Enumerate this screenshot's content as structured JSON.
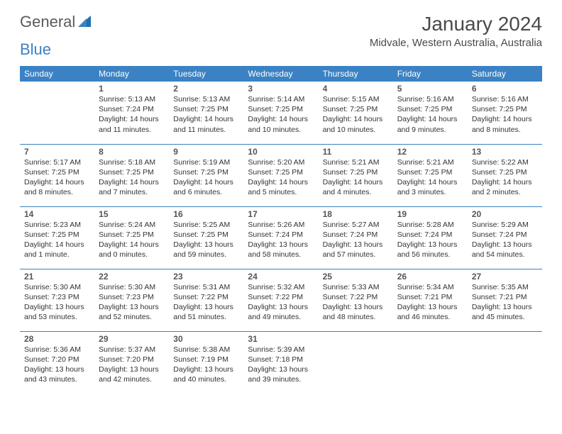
{
  "logo": {
    "word1": "General",
    "word2": "Blue"
  },
  "title": "January 2024",
  "location": "Midvale, Western Australia, Australia",
  "dayHeaders": [
    "Sunday",
    "Monday",
    "Tuesday",
    "Wednesday",
    "Thursday",
    "Friday",
    "Saturday"
  ],
  "colors": {
    "headerBg": "#3b82c4",
    "headerText": "#ffffff",
    "cellBorder": "#3b82c4",
    "bodyText": "#333333",
    "logoGray": "#5a5a5a",
    "logoBlue": "#3b82c4"
  },
  "typography": {
    "monthTitle_fontsize": 28,
    "location_fontsize": 15,
    "dayHeader_fontsize": 12,
    "dayNum_fontsize": 12,
    "cellText_fontsize": 10.5
  },
  "weeks": [
    [
      null,
      {
        "n": "1",
        "sr": "5:13 AM",
        "ss": "7:24 PM",
        "dl": "14 hours and 11 minutes."
      },
      {
        "n": "2",
        "sr": "5:13 AM",
        "ss": "7:25 PM",
        "dl": "14 hours and 11 minutes."
      },
      {
        "n": "3",
        "sr": "5:14 AM",
        "ss": "7:25 PM",
        "dl": "14 hours and 10 minutes."
      },
      {
        "n": "4",
        "sr": "5:15 AM",
        "ss": "7:25 PM",
        "dl": "14 hours and 10 minutes."
      },
      {
        "n": "5",
        "sr": "5:16 AM",
        "ss": "7:25 PM",
        "dl": "14 hours and 9 minutes."
      },
      {
        "n": "6",
        "sr": "5:16 AM",
        "ss": "7:25 PM",
        "dl": "14 hours and 8 minutes."
      }
    ],
    [
      {
        "n": "7",
        "sr": "5:17 AM",
        "ss": "7:25 PM",
        "dl": "14 hours and 8 minutes."
      },
      {
        "n": "8",
        "sr": "5:18 AM",
        "ss": "7:25 PM",
        "dl": "14 hours and 7 minutes."
      },
      {
        "n": "9",
        "sr": "5:19 AM",
        "ss": "7:25 PM",
        "dl": "14 hours and 6 minutes."
      },
      {
        "n": "10",
        "sr": "5:20 AM",
        "ss": "7:25 PM",
        "dl": "14 hours and 5 minutes."
      },
      {
        "n": "11",
        "sr": "5:21 AM",
        "ss": "7:25 PM",
        "dl": "14 hours and 4 minutes."
      },
      {
        "n": "12",
        "sr": "5:21 AM",
        "ss": "7:25 PM",
        "dl": "14 hours and 3 minutes."
      },
      {
        "n": "13",
        "sr": "5:22 AM",
        "ss": "7:25 PM",
        "dl": "14 hours and 2 minutes."
      }
    ],
    [
      {
        "n": "14",
        "sr": "5:23 AM",
        "ss": "7:25 PM",
        "dl": "14 hours and 1 minute."
      },
      {
        "n": "15",
        "sr": "5:24 AM",
        "ss": "7:25 PM",
        "dl": "14 hours and 0 minutes."
      },
      {
        "n": "16",
        "sr": "5:25 AM",
        "ss": "7:25 PM",
        "dl": "13 hours and 59 minutes."
      },
      {
        "n": "17",
        "sr": "5:26 AM",
        "ss": "7:24 PM",
        "dl": "13 hours and 58 minutes."
      },
      {
        "n": "18",
        "sr": "5:27 AM",
        "ss": "7:24 PM",
        "dl": "13 hours and 57 minutes."
      },
      {
        "n": "19",
        "sr": "5:28 AM",
        "ss": "7:24 PM",
        "dl": "13 hours and 56 minutes."
      },
      {
        "n": "20",
        "sr": "5:29 AM",
        "ss": "7:24 PM",
        "dl": "13 hours and 54 minutes."
      }
    ],
    [
      {
        "n": "21",
        "sr": "5:30 AM",
        "ss": "7:23 PM",
        "dl": "13 hours and 53 minutes."
      },
      {
        "n": "22",
        "sr": "5:30 AM",
        "ss": "7:23 PM",
        "dl": "13 hours and 52 minutes."
      },
      {
        "n": "23",
        "sr": "5:31 AM",
        "ss": "7:22 PM",
        "dl": "13 hours and 51 minutes."
      },
      {
        "n": "24",
        "sr": "5:32 AM",
        "ss": "7:22 PM",
        "dl": "13 hours and 49 minutes."
      },
      {
        "n": "25",
        "sr": "5:33 AM",
        "ss": "7:22 PM",
        "dl": "13 hours and 48 minutes."
      },
      {
        "n": "26",
        "sr": "5:34 AM",
        "ss": "7:21 PM",
        "dl": "13 hours and 46 minutes."
      },
      {
        "n": "27",
        "sr": "5:35 AM",
        "ss": "7:21 PM",
        "dl": "13 hours and 45 minutes."
      }
    ],
    [
      {
        "n": "28",
        "sr": "5:36 AM",
        "ss": "7:20 PM",
        "dl": "13 hours and 43 minutes."
      },
      {
        "n": "29",
        "sr": "5:37 AM",
        "ss": "7:20 PM",
        "dl": "13 hours and 42 minutes."
      },
      {
        "n": "30",
        "sr": "5:38 AM",
        "ss": "7:19 PM",
        "dl": "13 hours and 40 minutes."
      },
      {
        "n": "31",
        "sr": "5:39 AM",
        "ss": "7:18 PM",
        "dl": "13 hours and 39 minutes."
      },
      null,
      null,
      null
    ]
  ],
  "labels": {
    "sunrise": "Sunrise:",
    "sunset": "Sunset:",
    "daylight": "Daylight:"
  }
}
